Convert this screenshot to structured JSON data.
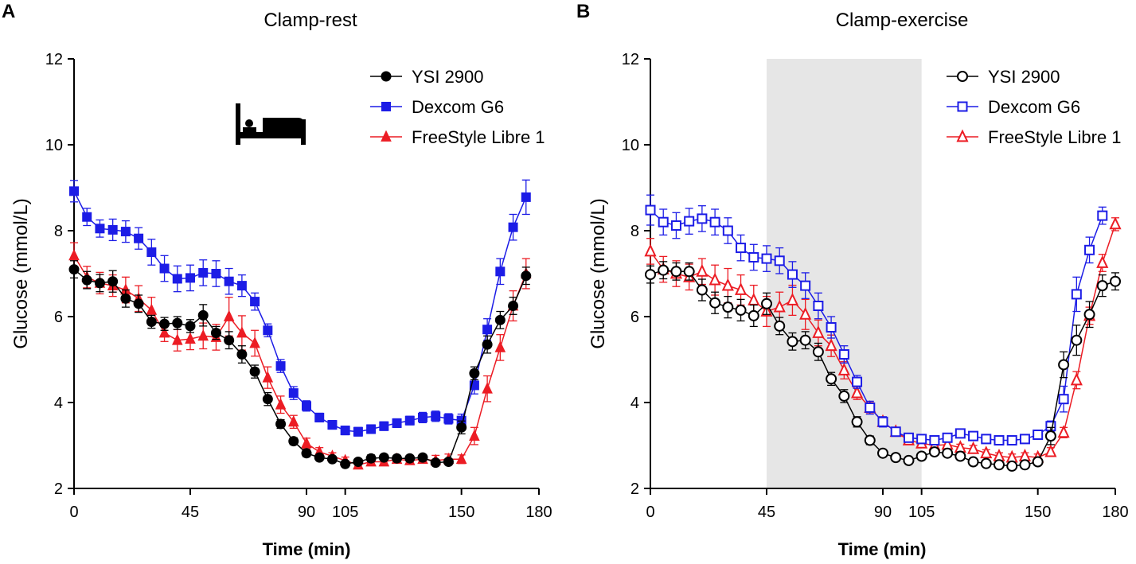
{
  "chart_data": [
    {
      "type": "line",
      "panel": "A",
      "title": "Clamp-rest",
      "xlabel": "Time (min)",
      "ylabel": "Glucose (mmol/L)",
      "xlim": [
        0,
        180
      ],
      "ylim": [
        2,
        12
      ],
      "xticks": [
        0,
        45,
        90,
        105,
        150,
        180
      ],
      "yticks": [
        2,
        4,
        6,
        8,
        10,
        12
      ],
      "shaded_region": null,
      "marker_fill": "filled",
      "icon": "bed-icon",
      "legend_position": "top-right",
      "series": [
        {
          "name": "YSI 2900",
          "color": "#000000",
          "marker": "circle",
          "x": [
            0,
            5,
            10,
            15,
            20,
            25,
            30,
            35,
            40,
            45,
            50,
            55,
            60,
            65,
            70,
            75,
            80,
            85,
            90,
            95,
            100,
            105,
            110,
            115,
            120,
            125,
            130,
            135,
            140,
            145,
            150,
            155,
            160,
            165,
            170,
            175,
            180
          ],
          "y": [
            7.1,
            6.85,
            6.78,
            6.82,
            6.42,
            6.3,
            5.88,
            5.83,
            5.85,
            5.78,
            6.03,
            5.62,
            5.45,
            5.12,
            4.72,
            4.08,
            3.5,
            3.1,
            2.82,
            2.72,
            2.68,
            2.57,
            2.62,
            2.7,
            2.72,
            2.7,
            2.7,
            2.72,
            2.6,
            2.62,
            3.42,
            4.68,
            5.35,
            5.92,
            6.25,
            6.95,
            null
          ],
          "err": [
            0.2,
            0.2,
            0.2,
            0.25,
            0.2,
            0.2,
            0.15,
            0.15,
            0.15,
            0.15,
            0.25,
            0.15,
            0.2,
            0.2,
            0.15,
            0.15,
            0.1,
            0.08,
            0.08,
            0.06,
            0.06,
            0.06,
            0.06,
            0.08,
            0.06,
            0.06,
            0.06,
            0.06,
            0.06,
            0.06,
            0.15,
            0.15,
            0.2,
            0.2,
            0.2,
            0.2,
            0
          ]
        },
        {
          "name": "Dexcom G6",
          "color": "#1c1ce6",
          "marker": "square",
          "x": [
            0,
            5,
            10,
            15,
            20,
            25,
            30,
            35,
            40,
            45,
            50,
            55,
            60,
            65,
            70,
            75,
            80,
            85,
            90,
            95,
            100,
            105,
            110,
            115,
            120,
            125,
            130,
            135,
            140,
            145,
            150,
            155,
            160,
            165,
            170,
            175,
            180
          ],
          "y": [
            8.92,
            8.32,
            8.05,
            8.02,
            7.98,
            7.82,
            7.5,
            7.12,
            6.88,
            6.9,
            7.02,
            7.0,
            6.82,
            6.72,
            6.35,
            5.68,
            4.85,
            4.22,
            3.92,
            3.65,
            3.48,
            3.35,
            3.32,
            3.38,
            3.45,
            3.52,
            3.58,
            3.65,
            3.68,
            3.62,
            3.58,
            4.4,
            5.7,
            7.05,
            8.08,
            8.78,
            null
          ],
          "err": [
            0.25,
            0.2,
            0.2,
            0.25,
            0.25,
            0.25,
            0.3,
            0.3,
            0.3,
            0.3,
            0.3,
            0.3,
            0.3,
            0.25,
            0.2,
            0.15,
            0.15,
            0.15,
            0.12,
            0.1,
            0.1,
            0.1,
            0.1,
            0.1,
            0.1,
            0.1,
            0.1,
            0.12,
            0.12,
            0.12,
            0.15,
            0.2,
            0.25,
            0.3,
            0.3,
            0.4,
            0
          ]
        },
        {
          "name": "FreeStyle Libre 1",
          "color": "#ec1c24",
          "marker": "triangle",
          "x": [
            0,
            5,
            10,
            15,
            20,
            25,
            30,
            35,
            40,
            45,
            50,
            55,
            60,
            65,
            70,
            75,
            80,
            85,
            90,
            95,
            100,
            105,
            110,
            115,
            120,
            125,
            130,
            135,
            140,
            145,
            150,
            155,
            160,
            165,
            170,
            175,
            180
          ],
          "y": [
            7.42,
            6.92,
            6.78,
            6.72,
            6.62,
            6.42,
            6.15,
            5.62,
            5.45,
            5.48,
            5.55,
            5.52,
            6.0,
            5.62,
            5.38,
            4.58,
            3.95,
            3.55,
            3.05,
            2.85,
            2.75,
            2.65,
            2.55,
            2.62,
            2.62,
            2.68,
            2.65,
            2.68,
            2.65,
            2.68,
            2.68,
            3.22,
            4.32,
            5.28,
            6.25,
            7.0,
            null
          ],
          "err": [
            0.3,
            0.25,
            0.25,
            0.25,
            0.3,
            0.3,
            0.3,
            0.2,
            0.25,
            0.25,
            0.3,
            0.3,
            0.45,
            0.4,
            0.3,
            0.25,
            0.2,
            0.15,
            0.12,
            0.1,
            0.08,
            0.08,
            0.08,
            0.08,
            0.08,
            0.08,
            0.08,
            0.08,
            0.12,
            0.12,
            0.1,
            0.2,
            0.3,
            0.3,
            0.35,
            0.35,
            0
          ]
        }
      ]
    },
    {
      "type": "line",
      "panel": "B",
      "title": "Clamp-exercise",
      "xlabel": "Time (min)",
      "ylabel": "Glucose (mmol/L)",
      "xlim": [
        0,
        180
      ],
      "ylim": [
        2,
        12
      ],
      "xticks": [
        0,
        45,
        90,
        105,
        150,
        180
      ],
      "yticks": [
        2,
        4,
        6,
        8,
        10,
        12
      ],
      "shaded_region": [
        45,
        105
      ],
      "marker_fill": "open",
      "icon": "cyclist-icon",
      "legend_position": "top-right",
      "series": [
        {
          "name": "YSI 2900",
          "color": "#000000",
          "marker": "circle",
          "x": [
            0,
            5,
            10,
            15,
            20,
            25,
            30,
            35,
            40,
            45,
            50,
            55,
            60,
            65,
            70,
            75,
            80,
            85,
            90,
            95,
            100,
            105,
            110,
            115,
            120,
            125,
            130,
            135,
            140,
            145,
            150,
            155,
            160,
            165,
            170,
            175,
            180
          ],
          "y": [
            6.98,
            7.08,
            7.05,
            7.05,
            6.62,
            6.32,
            6.22,
            6.15,
            6.02,
            6.3,
            5.78,
            5.42,
            5.45,
            5.18,
            4.55,
            4.15,
            3.55,
            3.12,
            2.82,
            2.72,
            2.65,
            2.75,
            2.85,
            2.82,
            2.75,
            2.62,
            2.58,
            2.55,
            2.52,
            2.55,
            2.62,
            3.22,
            4.88,
            5.45,
            6.05,
            6.72,
            6.82
          ],
          "err": [
            0.2,
            0.2,
            0.2,
            0.2,
            0.25,
            0.25,
            0.25,
            0.25,
            0.25,
            0.25,
            0.2,
            0.2,
            0.2,
            0.2,
            0.15,
            0.15,
            0.12,
            0.1,
            0.08,
            0.06,
            0.06,
            0.06,
            0.06,
            0.06,
            0.06,
            0.06,
            0.06,
            0.06,
            0.06,
            0.06,
            0.06,
            0.2,
            0.3,
            0.35,
            0.3,
            0.25,
            0.2
          ]
        },
        {
          "name": "Dexcom G6",
          "color": "#1c1ce6",
          "marker": "square",
          "x": [
            0,
            5,
            10,
            15,
            20,
            25,
            30,
            35,
            40,
            45,
            50,
            55,
            60,
            65,
            70,
            75,
            80,
            85,
            90,
            95,
            100,
            105,
            110,
            115,
            120,
            125,
            130,
            135,
            140,
            145,
            150,
            155,
            160,
            165,
            170,
            175,
            180
          ],
          "y": [
            8.48,
            8.2,
            8.12,
            8.22,
            8.28,
            8.2,
            8.0,
            7.6,
            7.38,
            7.35,
            7.3,
            6.98,
            6.72,
            6.25,
            5.75,
            5.12,
            4.48,
            3.88,
            3.55,
            3.32,
            3.18,
            3.15,
            3.12,
            3.18,
            3.28,
            3.22,
            3.15,
            3.12,
            3.12,
            3.15,
            3.25,
            3.45,
            4.08,
            6.52,
            7.55,
            8.35,
            null
          ],
          "err": [
            0.35,
            0.3,
            0.3,
            0.3,
            0.3,
            0.3,
            0.3,
            0.3,
            0.3,
            0.3,
            0.3,
            0.3,
            0.3,
            0.3,
            0.25,
            0.2,
            0.15,
            0.15,
            0.12,
            0.1,
            0.1,
            0.1,
            0.1,
            0.1,
            0.1,
            0.1,
            0.1,
            0.1,
            0.1,
            0.1,
            0.1,
            0.12,
            0.3,
            0.4,
            0.3,
            0.2,
            0
          ]
        },
        {
          "name": "FreeStyle Libre 1",
          "color": "#ec1c24",
          "marker": "triangle",
          "x": [
            0,
            5,
            10,
            15,
            20,
            25,
            30,
            35,
            40,
            45,
            50,
            55,
            60,
            65,
            70,
            75,
            80,
            85,
            90,
            95,
            100,
            105,
            110,
            115,
            120,
            125,
            130,
            135,
            140,
            145,
            150,
            155,
            160,
            165,
            170,
            175,
            180
          ],
          "y": [
            7.52,
            7.1,
            7.0,
            6.92,
            7.05,
            6.85,
            6.72,
            6.62,
            6.38,
            6.12,
            6.22,
            6.38,
            6.05,
            5.62,
            5.32,
            4.75,
            4.22,
            3.88,
            3.55,
            3.32,
            3.12,
            3.05,
            3.0,
            3.02,
            2.95,
            2.92,
            2.82,
            2.75,
            2.72,
            2.75,
            2.72,
            2.85,
            3.3,
            4.52,
            6.02,
            7.25,
            8.15
          ],
          "err": [
            0.3,
            0.3,
            0.3,
            0.3,
            0.3,
            0.35,
            0.4,
            0.35,
            0.35,
            0.35,
            0.35,
            0.35,
            0.35,
            0.3,
            0.25,
            0.2,
            0.15,
            0.12,
            0.1,
            0.08,
            0.08,
            0.08,
            0.08,
            0.08,
            0.08,
            0.08,
            0.08,
            0.08,
            0.08,
            0.08,
            0.08,
            0.1,
            0.12,
            0.2,
            0.2,
            0.2,
            0.15
          ]
        }
      ]
    }
  ]
}
